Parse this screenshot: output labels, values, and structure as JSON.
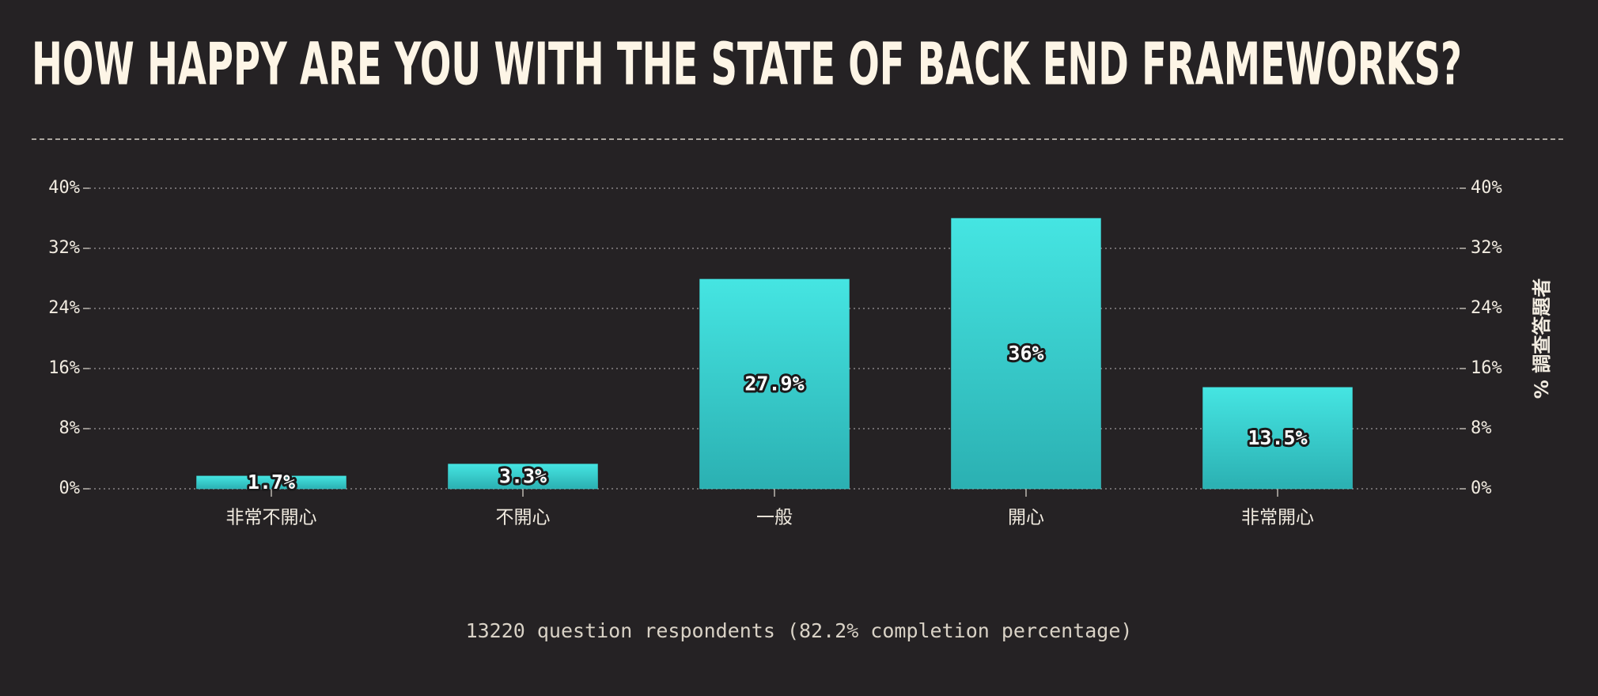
{
  "chart_data": {
    "type": "bar",
    "title": "HOW HAPPY ARE YOU WITH THE STATE OF BACK END FRAMEWORKS?",
    "y_axis_label": "% 調查答題者",
    "categories": [
      "非常不開心",
      "不開心",
      "一般",
      "開心",
      "非常開心"
    ],
    "values": [
      1.7,
      3.3,
      27.9,
      36,
      13.5
    ],
    "value_labels": [
      "1.7%",
      "3.3%",
      "27.9%",
      "36%",
      "13.5%"
    ],
    "color": "#3fd6d6",
    "ylim": [
      0,
      40
    ],
    "yticks": [
      {
        "value": 0,
        "label": "0%"
      },
      {
        "value": 8,
        "label": "8%"
      },
      {
        "value": 16,
        "label": "16%"
      },
      {
        "value": 24,
        "label": "24%"
      },
      {
        "value": 32,
        "label": "32%"
      },
      {
        "value": 40,
        "label": "40%"
      }
    ],
    "grid": true,
    "footnote": "13220 question respondents (82.2% completion percentage)"
  }
}
